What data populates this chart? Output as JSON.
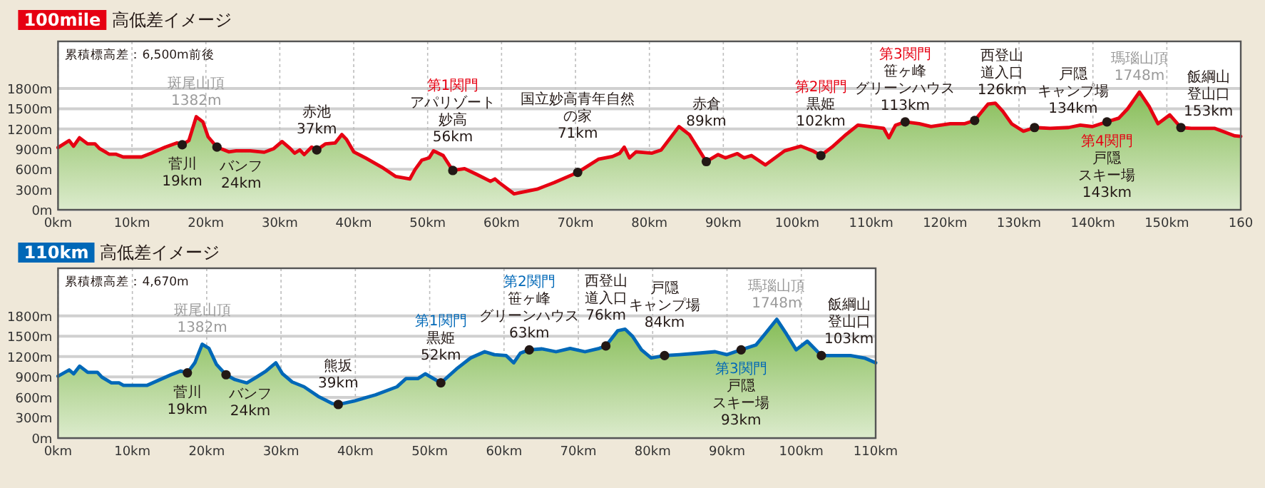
{
  "chart_data": [
    {
      "type": "area",
      "title": "**100mile** 高低差イメージ",
      "xlim": [
        0,
        160
      ],
      "ylim": [
        0,
        2500
      ],
      "grid": true,
      "xticks": [
        {
          "value": 0,
          "label": "0km"
        },
        {
          "value": 10,
          "label": "10km"
        },
        {
          "value": 20,
          "label": "20km"
        },
        {
          "value": 30,
          "label": "30km"
        },
        {
          "value": 40,
          "label": "40km"
        },
        {
          "value": 50,
          "label": "50km"
        },
        {
          "value": 60,
          "label": "60km"
        },
        {
          "value": 70,
          "label": "70km"
        },
        {
          "value": 80,
          "label": "80km"
        },
        {
          "value": 90,
          "label": "90km"
        },
        {
          "value": 100,
          "label": "100km"
        },
        {
          "value": 110,
          "label": "110km"
        },
        {
          "value": 120,
          "label": "120km"
        },
        {
          "value": 130,
          "label": "130km"
        },
        {
          "value": 140,
          "label": "140km"
        },
        {
          "value": 150,
          "label": "150km"
        },
        {
          "value": 160,
          "label": "160"
        }
      ],
      "yticks": [
        {
          "value": 0,
          "label": "0m"
        },
        {
          "value": 300,
          "label": "300m"
        },
        {
          "value": 600,
          "label": "600m"
        },
        {
          "value": 900,
          "label": "900m"
        },
        {
          "value": 1200,
          "label": "1200m"
        },
        {
          "value": 1500,
          "label": "1500m"
        },
        {
          "value": 1800,
          "label": "1800m"
        }
      ],
      "series": [
        {
          "type": "area",
          "color": "#e60012",
          "marker": "none",
          "x": [
            0,
            1.5,
            2.1,
            2.9,
            4.0,
            5.0,
            5.6,
            6.9,
            7.8,
            8.8,
            11.3,
            12.6,
            14.5,
            16.1,
            16.8,
            17.7,
            18.7,
            19.6,
            20.3,
            21.5,
            23.1,
            24.1,
            26.0,
            27.9,
            29.2,
            30.3,
            31.4,
            32.0,
            32.7,
            33.3,
            34.3,
            35.0,
            36.2,
            37.5,
            38.4,
            39.0,
            40.0,
            41.6,
            43.8,
            45.7,
            47.6,
            48.3,
            49.2,
            50.2,
            50.8,
            52.1,
            53.4,
            55.0,
            56.6,
            58.5,
            59.1,
            59.7,
            61.7,
            62.9,
            64.8,
            67.1,
            70.3,
            73.1,
            75.0,
            76.0,
            76.6,
            77.3,
            78.2,
            80.3,
            81.6,
            84.0,
            85.4,
            87.7,
            89.3,
            90.3,
            91.9,
            92.8,
            93.8,
            95.7,
            98.3,
            100.5,
            102.1,
            103.2,
            104.7,
            106.6,
            108.2,
            109.8,
            111.7,
            112.4,
            113.3,
            114.6,
            116.5,
            118.1,
            120.7,
            122.6,
            124.0,
            125.8,
            126.8,
            127.8,
            129.0,
            130.6,
            132.1,
            134.2,
            136.7,
            138.3,
            139.9,
            141.9,
            143.5,
            144.7,
            146.3,
            147.6,
            148.8,
            150.4,
            151.9,
            153.3,
            156.5,
            159.2,
            160
          ],
          "values": [
            923,
            1027,
            944,
            1069,
            979,
            979,
            909,
            826,
            826,
            784,
            784,
            840,
            930,
            992,
            965,
            1027,
            1382,
            1305,
            1083,
            930,
            860,
            875,
            875,
            854,
            909,
            1013,
            909,
            840,
            888,
            819,
            930,
            888,
            979,
            992,
            1117,
            1048,
            860,
            770,
            632,
            493,
            458,
            597,
            736,
            770,
            875,
            805,
            583,
            611,
            527,
            423,
            458,
            402,
            236,
            264,
            305,
            402,
            555,
            750,
            791,
            840,
            930,
            770,
            860,
            840,
            888,
            1235,
            1117,
            715,
            819,
            770,
            833,
            770,
            805,
            666,
            875,
            944,
            875,
            805,
            930,
            1117,
            1256,
            1235,
            1208,
            1069,
            1256,
            1305,
            1277,
            1235,
            1277,
            1277,
            1326,
            1568,
            1582,
            1464,
            1277,
            1166,
            1221,
            1208,
            1221,
            1256,
            1235,
            1305,
            1360,
            1499,
            1748,
            1534,
            1277,
            1409,
            1221,
            1208,
            1208,
            1097,
            1090
          ]
        },
        {
          "type": "scatter",
          "color": "#231815",
          "marker": "circle",
          "x": [
            16.8,
            21.5,
            35.0,
            53.4,
            70.3,
            87.7,
            103.2,
            114.6,
            124.0,
            132.1,
            141.9,
            151.9
          ],
          "values": [
            965,
            930,
            888,
            583,
            555,
            715,
            805,
            1305,
            1326,
            1221,
            1305,
            1221
          ]
        }
      ],
      "annotations": [
        "累積標高差：6,500m前後",
        {
          "text": "斑尾山頂\n1382m",
          "x": 18.7,
          "y": 1382
        },
        {
          "text": "瑪瑙山頂\n1748m",
          "x": 146.3,
          "y": 1748
        },
        {
          "text": "菅川\n19km",
          "x": 16.8,
          "y": 965
        },
        {
          "text": "バンフ\n24km",
          "x": 21.5,
          "y": 930
        },
        {
          "text": "赤池\n37km",
          "x": 35.0,
          "y": 888
        },
        "第1関門",
        {
          "text": "アパリゾート妙高\n56km",
          "x": 53.4,
          "y": 583
        },
        {
          "text": "国立妙高青年自然の家\n71km",
          "x": 70.3,
          "y": 555
        },
        {
          "text": "赤倉\n89km",
          "x": 87.7,
          "y": 715
        },
        "第2関門",
        {
          "text": "黒姫\n102km",
          "x": 103.2,
          "y": 805
        },
        "第3関門",
        {
          "text": "笹ヶ峰グリーンハウス\n113km",
          "x": 114.6,
          "y": 1305
        },
        {
          "text": "西登山道入口\n126km",
          "x": 124.0,
          "y": 1326
        },
        {
          "text": "戸隠キャンプ場\n134km",
          "x": 132.1,
          "y": 1221
        },
        "第4関門",
        {
          "text": "戸隠スキー場\n143km",
          "x": 141.9,
          "y": 1305
        },
        {
          "text": "飯綱山登山口\n153km",
          "x": 151.9,
          "y": 1221
        }
      ]
    },
    {
      "type": "area",
      "title": "**110km** 高低差イメージ",
      "xlim": [
        0,
        110
      ],
      "ylim": [
        0,
        2500
      ],
      "grid": true,
      "xticks": [
        {
          "value": 0,
          "label": "0km"
        },
        {
          "value": 10,
          "label": "10km"
        },
        {
          "value": 20,
          "label": "20km"
        },
        {
          "value": 30,
          "label": "30km"
        },
        {
          "value": 40,
          "label": "40km"
        },
        {
          "value": 50,
          "label": "50km"
        },
        {
          "value": 60,
          "label": "60km"
        },
        {
          "value": 70,
          "label": "70km"
        },
        {
          "value": 80,
          "label": "80km"
        },
        {
          "value": 90,
          "label": "90km"
        },
        {
          "value": 100,
          "label": "100km"
        },
        {
          "value": 110,
          "label": "110km"
        }
      ],
      "yticks": [
        {
          "value": 0,
          "label": "0m"
        },
        {
          "value": 300,
          "label": "300m"
        },
        {
          "value": 600,
          "label": "600m"
        },
        {
          "value": 900,
          "label": "900m"
        },
        {
          "value": 1200,
          "label": "1200m"
        },
        {
          "value": 1500,
          "label": "1500m"
        },
        {
          "value": 1800,
          "label": "1800m"
        }
      ],
      "series": [
        {
          "type": "area",
          "color": "#0068b7",
          "marker": "none",
          "x": [
            0,
            1.5,
            2.1,
            2.9,
            4.0,
            5.3,
            5.9,
            7.2,
            8.2,
            8.8,
            12.0,
            13.3,
            15.2,
            16.5,
            17.4,
            18.4,
            19.4,
            20.3,
            21.3,
            22.6,
            23.8,
            25.4,
            26.7,
            28.0,
            29.3,
            30.2,
            31.5,
            33.1,
            35.0,
            36.9,
            37.7,
            39.8,
            42.7,
            45.6,
            46.8,
            48.4,
            49.4,
            51.5,
            53.6,
            55.5,
            57.4,
            58.7,
            60.3,
            61.3,
            62.2,
            63.4,
            65.1,
            67.0,
            68.9,
            70.9,
            72.8,
            73.7,
            75.3,
            76.3,
            77.3,
            78.5,
            79.8,
            81.6,
            83.6,
            86.2,
            88.4,
            90.0,
            91.9,
            93.9,
            95.1,
            96.7,
            98.0,
            99.3,
            100.8,
            102.7,
            104.1,
            106.6,
            108.5,
            110
          ],
          "values": [
            911,
            1003,
            946,
            1059,
            967,
            967,
            897,
            812,
            812,
            777,
            777,
            840,
            932,
            988,
            960,
            1108,
            1382,
            1320,
            1087,
            932,
            861,
            812,
            897,
            988,
            1108,
            946,
            826,
            755,
            614,
            508,
            494,
            544,
            635,
            755,
            875,
            875,
            946,
            812,
            1017,
            1179,
            1271,
            1228,
            1214,
            1108,
            1250,
            1299,
            1313,
            1271,
            1320,
            1271,
            1320,
            1356,
            1581,
            1603,
            1497,
            1299,
            1179,
            1214,
            1228,
            1250,
            1271,
            1228,
            1299,
            1370,
            1532,
            1748,
            1532,
            1299,
            1426,
            1214,
            1214,
            1214,
            1179,
            1108
          ]
        },
        {
          "type": "scatter",
          "color": "#231815",
          "marker": "circle",
          "x": [
            17.4,
            22.6,
            37.7,
            51.5,
            63.4,
            73.7,
            81.6,
            91.9,
            102.7
          ],
          "values": [
            960,
            932,
            494,
            812,
            1299,
            1356,
            1214,
            1299,
            1214
          ]
        }
      ],
      "annotations": [
        "累積標高差：4,670m",
        {
          "text": "斑尾山頂\n1382m",
          "x": 19.4,
          "y": 1382
        },
        {
          "text": "瑪瑙山頂\n1748m",
          "x": 96.7,
          "y": 1748
        },
        {
          "text": "菅川\n19km",
          "x": 17.4,
          "y": 960
        },
        {
          "text": "バンフ\n24km",
          "x": 22.6,
          "y": 932
        },
        {
          "text": "熊坂\n39km",
          "x": 37.7,
          "y": 494
        },
        "第1関門",
        {
          "text": "黒姫\n52km",
          "x": 51.5,
          "y": 812
        },
        "第2関門",
        {
          "text": "笹ヶ峰グリーンハウス\n63km",
          "x": 63.4,
          "y": 1299
        },
        {
          "text": "西登山道入口\n76km",
          "x": 73.7,
          "y": 1356
        },
        {
          "text": "戸隠キャンプ場\n84km",
          "x": 81.6,
          "y": 1214
        },
        "第3関門",
        {
          "text": "戸隠スキー場\n93km",
          "x": 91.9,
          "y": 1299
        },
        {
          "text": "飯綱山登山口\n103km",
          "x": 102.7,
          "y": 1214
        }
      ]
    }
  ]
}
